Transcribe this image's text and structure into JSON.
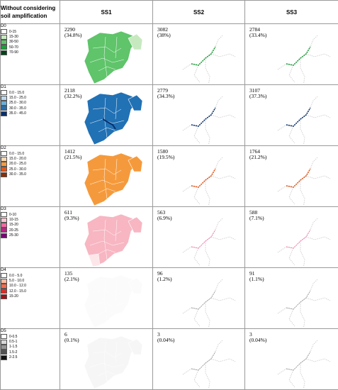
{
  "header": {
    "corner": "Without considering soil amplification",
    "columns": [
      "SS1",
      "SS2",
      "SS3"
    ]
  },
  "rows": [
    {
      "legend": {
        "title": "D0",
        "items": [
          {
            "label": "0-15",
            "color": "#ffffff"
          },
          {
            "label": "15-30",
            "color": "#c7e9c0"
          },
          {
            "label": "30-50",
            "color": "#5fc46a"
          },
          {
            "label": "50-70",
            "color": "#1e9e3a"
          },
          {
            "label": "70-90",
            "color": "#00441b"
          }
        ]
      },
      "fill_color": "#5fc46a",
      "accent_color": "#1e9e3a",
      "values": [
        {
          "count": "2290",
          "pct": "(34.8%)"
        },
        {
          "count": "3082",
          "pct": "(38%)"
        },
        {
          "count": "2784",
          "pct": "(33.4%)"
        }
      ]
    },
    {
      "legend": {
        "title": "D1",
        "items": [
          {
            "label": "0.0 - 15.0",
            "color": "#ffffff"
          },
          {
            "label": "15.0 - 25.0",
            "color": "#bdd7ee"
          },
          {
            "label": "25.0 - 30.0",
            "color": "#6baed6"
          },
          {
            "label": "30.0 - 35.0",
            "color": "#2171b5"
          },
          {
            "label": "35.0 - 45.0",
            "color": "#08306b"
          }
        ]
      },
      "fill_color": "#2171b5",
      "accent_color": "#08306b",
      "values": [
        {
          "count": "2118",
          "pct": "(32.2%)"
        },
        {
          "count": "2779",
          "pct": "(34.3%)"
        },
        {
          "count": "3107",
          "pct": "(37.3%)"
        }
      ]
    },
    {
      "legend": {
        "title": "D2",
        "items": [
          {
            "label": "0.0 - 15.0",
            "color": "#ffffff"
          },
          {
            "label": "15.0 - 20.0",
            "color": "#fdd9b5"
          },
          {
            "label": "20.0 - 25.0",
            "color": "#f59a3c"
          },
          {
            "label": "25.0 - 30.0",
            "color": "#e2561a"
          },
          {
            "label": "30.0 - 35.0",
            "color": "#8c2d04"
          }
        ]
      },
      "fill_color": "#f59a3c",
      "accent_color": "#e2561a",
      "values": [
        {
          "count": "1412",
          "pct": "(21.5%)"
        },
        {
          "count": "1580",
          "pct": "(19.5%)"
        },
        {
          "count": "1764",
          "pct": "(21.2%)"
        }
      ]
    },
    {
      "legend": {
        "title": "D3",
        "items": [
          {
            "label": "0-10",
            "color": "#ffffff"
          },
          {
            "label": "10-15",
            "color": "#fcc5cf"
          },
          {
            "label": "15-20",
            "color": "#f768a1"
          },
          {
            "label": "20-25",
            "color": "#c51b8a"
          },
          {
            "label": "25-30",
            "color": "#7a0177"
          }
        ]
      },
      "fill_color": "#f7b6c2",
      "accent_color": "#f768a1",
      "values": [
        {
          "count": "611",
          "pct": "(9.3%)"
        },
        {
          "count": "563",
          "pct": "(6.9%)"
        },
        {
          "count": "588",
          "pct": "(7.1%)"
        }
      ]
    },
    {
      "legend": {
        "title": "D4",
        "items": [
          {
            "label": "0.0 - 5.0",
            "color": "#ffffff"
          },
          {
            "label": "5.0 - 10.0",
            "color": "#fcbba1"
          },
          {
            "label": "10.0 - 12.0",
            "color": "#fb6a4a"
          },
          {
            "label": "12.0 - 15.0",
            "color": "#de2d26"
          },
          {
            "label": "15-20",
            "color": "#a50f15"
          }
        ]
      },
      "fill_color": "#fbfbfb",
      "accent_color": "#9a9a9a",
      "values": [
        {
          "count": "135",
          "pct": "(2.1%)"
        },
        {
          "count": "96",
          "pct": "(1.2%)"
        },
        {
          "count": "91",
          "pct": "(1.1%)"
        }
      ]
    },
    {
      "legend": {
        "title": "D5",
        "items": [
          {
            "label": "0-0.5",
            "color": "#ffffff"
          },
          {
            "label": "0.5-1",
            "color": "#d9d9d9"
          },
          {
            "label": "1-1.5",
            "color": "#969696"
          },
          {
            "label": "1.5-2",
            "color": "#525252"
          },
          {
            "label": "2-2.5",
            "color": "#111111"
          }
        ]
      },
      "fill_color": "#f6f6f6",
      "accent_color": "#9a9a9a",
      "values": [
        {
          "count": "6",
          "pct": "(0.1%)"
        },
        {
          "count": "3",
          "pct": "(0.04%)"
        },
        {
          "count": "3",
          "pct": "(0.04%)"
        }
      ]
    }
  ]
}
